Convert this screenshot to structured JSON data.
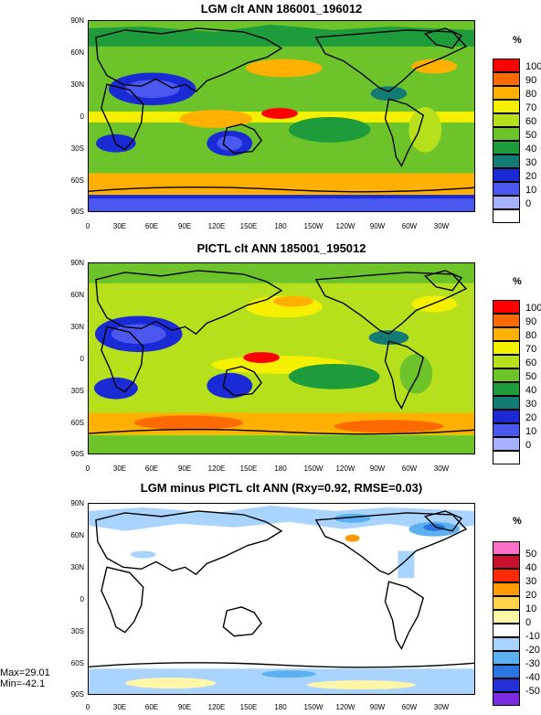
{
  "ylabels": [
    "90N",
    "60N",
    "30N",
    "0",
    "30S",
    "60S",
    "90S"
  ],
  "xlabels": [
    "0",
    "30E",
    "60E",
    "90E",
    "120E",
    "150E",
    "180",
    "150W",
    "120W",
    "90W",
    "60W",
    "30W"
  ],
  "panels": [
    {
      "title": "LGM clt ANN 186001_196012",
      "unit": "%",
      "legend": [
        {
          "label": "100",
          "color": "#ff0000"
        },
        {
          "label": "90",
          "color": "#ff6a00"
        },
        {
          "label": "80",
          "color": "#ffb000"
        },
        {
          "label": "70",
          "color": "#f5f000"
        },
        {
          "label": "60",
          "color": "#b7e01c"
        },
        {
          "label": "50",
          "color": "#6cc42a"
        },
        {
          "label": "40",
          "color": "#1e9c3c"
        },
        {
          "label": "30",
          "color": "#147a74"
        },
        {
          "label": "20",
          "color": "#1a2bd6"
        },
        {
          "label": "10",
          "color": "#4a58f0"
        },
        {
          "label": "0",
          "color": "#a6b1ff"
        },
        {
          "label": "",
          "color": "#ffffff"
        }
      ]
    },
    {
      "title": "PICTL clt ANN 185001_195012",
      "unit": "%",
      "legend": [
        {
          "label": "100",
          "color": "#ff0000"
        },
        {
          "label": "90",
          "color": "#ff6a00"
        },
        {
          "label": "80",
          "color": "#ffb000"
        },
        {
          "label": "70",
          "color": "#f5f000"
        },
        {
          "label": "60",
          "color": "#b7e01c"
        },
        {
          "label": "50",
          "color": "#6cc42a"
        },
        {
          "label": "40",
          "color": "#1e9c3c"
        },
        {
          "label": "30",
          "color": "#147a74"
        },
        {
          "label": "20",
          "color": "#1a2bd6"
        },
        {
          "label": "10",
          "color": "#4a58f0"
        },
        {
          "label": "0",
          "color": "#a6b1ff"
        },
        {
          "label": "",
          "color": "#ffffff"
        }
      ]
    },
    {
      "title": "LGM minus PICTL clt ANN (Rxy=0.92, RMSE=0.03)",
      "unit": "%",
      "legend": [
        {
          "label": "50",
          "color": "#ff6ec7"
        },
        {
          "label": "40",
          "color": "#c8102e"
        },
        {
          "label": "30",
          "color": "#ff2a00"
        },
        {
          "label": "20",
          "color": "#ff9a00"
        },
        {
          "label": "10",
          "color": "#ffd24a"
        },
        {
          "label": "0",
          "color": "#fff6a8"
        },
        {
          "label": "-10",
          "color": "#ffffff"
        },
        {
          "label": "-20",
          "color": "#a9d4ff"
        },
        {
          "label": "-30",
          "color": "#5ab0f0"
        },
        {
          "label": "-40",
          "color": "#2a76e0"
        },
        {
          "label": "-50",
          "color": "#2430d8"
        },
        {
          "label": "",
          "color": "#7a2ae0"
        }
      ],
      "stats": {
        "max": "Max=29.01",
        "min": "Min=-42.1"
      }
    }
  ]
}
